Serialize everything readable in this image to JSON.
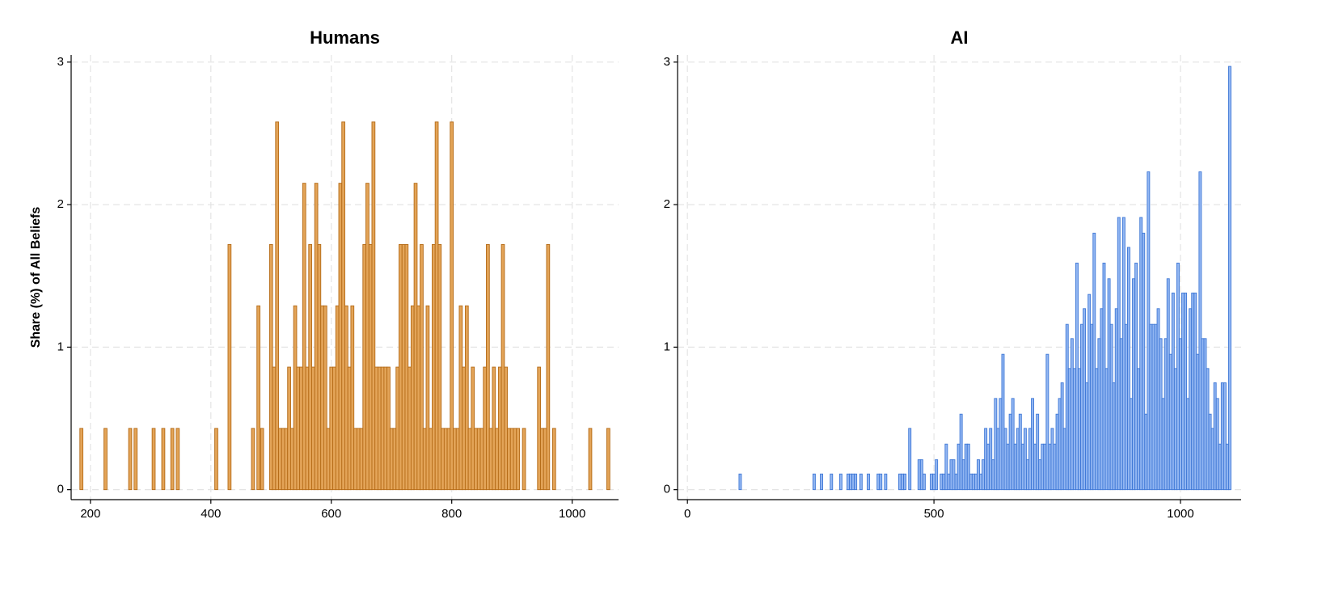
{
  "chart_data": [
    {
      "type": "bar",
      "title": "Humans",
      "y_label": "Share (%) of All Beliefs",
      "x": [
        185,
        225,
        266,
        275,
        305,
        321,
        336,
        345,
        409,
        431,
        470,
        479,
        485,
        500,
        505,
        510,
        515,
        520,
        525,
        530,
        535,
        540,
        545,
        550,
        555,
        560,
        565,
        570,
        575,
        580,
        585,
        590,
        595,
        600,
        605,
        610,
        615,
        620,
        625,
        630,
        635,
        640,
        645,
        650,
        655,
        660,
        665,
        670,
        675,
        680,
        685,
        690,
        695,
        700,
        705,
        710,
        715,
        720,
        725,
        730,
        735,
        740,
        745,
        750,
        755,
        760,
        765,
        770,
        775,
        780,
        785,
        790,
        795,
        800,
        805,
        810,
        815,
        820,
        825,
        830,
        835,
        840,
        845,
        850,
        855,
        860,
        865,
        870,
        875,
        880,
        885,
        890,
        895,
        900,
        905,
        910,
        920,
        945,
        950,
        955,
        960,
        970,
        1030,
        1060
      ],
      "values": [
        0.43,
        0.43,
        0.43,
        0.43,
        0.43,
        0.43,
        0.43,
        0.43,
        0.43,
        1.72,
        0.43,
        1.29,
        0.43,
        1.72,
        0.86,
        2.58,
        0.43,
        0.43,
        0.43,
        0.86,
        0.43,
        1.29,
        0.86,
        0.86,
        2.15,
        0.86,
        1.72,
        0.86,
        2.15,
        1.72,
        1.29,
        1.29,
        0.43,
        0.86,
        0.86,
        1.29,
        2.15,
        2.58,
        1.29,
        0.86,
        1.29,
        0.43,
        0.43,
        0.43,
        1.72,
        2.15,
        1.72,
        2.58,
        0.86,
        0.86,
        0.86,
        0.86,
        0.86,
        0.43,
        0.43,
        0.86,
        1.72,
        1.72,
        1.72,
        0.86,
        1.29,
        2.15,
        1.29,
        1.72,
        0.43,
        1.29,
        0.43,
        1.72,
        2.58,
        1.72,
        0.43,
        0.43,
        0.43,
        2.58,
        0.43,
        0.43,
        1.29,
        0.86,
        1.29,
        0.43,
        0.86,
        0.43,
        0.43,
        0.43,
        0.86,
        1.72,
        0.43,
        0.86,
        0.43,
        0.86,
        1.72,
        0.86,
        0.43,
        0.43,
        0.43,
        0.43,
        0.43,
        0.86,
        0.43,
        0.43,
        1.72,
        0.43,
        0.43,
        0.43
      ],
      "color": "#e3a458",
      "edge_color": "#b46a16",
      "xlim": [
        168,
        1077
      ],
      "ylim": [
        -0.07,
        3.05
      ],
      "xticks": [
        200,
        400,
        600,
        800,
        1000
      ],
      "yticks": [
        0,
        1,
        2,
        3
      ],
      "grid": true
    },
    {
      "type": "bar",
      "title": "AI",
      "x": [
        107,
        257,
        272,
        292,
        311,
        326,
        331,
        336,
        341,
        352,
        367,
        387,
        392,
        402,
        431,
        436,
        441,
        451,
        470,
        475,
        480,
        495,
        500,
        505,
        515,
        520,
        525,
        530,
        535,
        540,
        545,
        550,
        555,
        560,
        565,
        570,
        575,
        580,
        585,
        590,
        595,
        600,
        605,
        610,
        615,
        620,
        625,
        630,
        635,
        640,
        645,
        650,
        655,
        660,
        665,
        670,
        675,
        680,
        685,
        690,
        695,
        700,
        705,
        710,
        715,
        720,
        725,
        730,
        735,
        740,
        745,
        750,
        755,
        760,
        765,
        770,
        775,
        780,
        785,
        790,
        795,
        800,
        805,
        810,
        815,
        820,
        825,
        830,
        835,
        840,
        845,
        850,
        855,
        860,
        865,
        870,
        875,
        880,
        885,
        890,
        895,
        900,
        905,
        910,
        915,
        920,
        925,
        930,
        935,
        940,
        945,
        950,
        955,
        960,
        965,
        970,
        975,
        980,
        985,
        990,
        995,
        1000,
        1005,
        1010,
        1015,
        1020,
        1025,
        1030,
        1035,
        1040,
        1045,
        1050,
        1055,
        1060,
        1065,
        1070,
        1075,
        1080,
        1085,
        1090,
        1095,
        1100
      ],
      "values": [
        0.11,
        0.11,
        0.11,
        0.11,
        0.11,
        0.11,
        0.11,
        0.11,
        0.11,
        0.11,
        0.11,
        0.11,
        0.11,
        0.11,
        0.11,
        0.11,
        0.11,
        0.43,
        0.21,
        0.21,
        0.11,
        0.11,
        0.11,
        0.21,
        0.11,
        0.11,
        0.32,
        0.11,
        0.21,
        0.21,
        0.11,
        0.32,
        0.53,
        0.21,
        0.32,
        0.32,
        0.11,
        0.11,
        0.11,
        0.21,
        0.11,
        0.21,
        0.43,
        0.32,
        0.43,
        0.21,
        0.64,
        0.43,
        0.64,
        0.95,
        0.43,
        0.32,
        0.53,
        0.64,
        0.32,
        0.43,
        0.53,
        0.32,
        0.43,
        0.21,
        0.43,
        0.64,
        0.32,
        0.53,
        0.21,
        0.32,
        0.32,
        0.95,
        0.32,
        0.43,
        0.32,
        0.53,
        0.64,
        0.75,
        0.43,
        1.16,
        0.85,
        1.06,
        0.85,
        1.59,
        0.85,
        1.16,
        1.27,
        0.75,
        1.37,
        1.16,
        1.8,
        0.85,
        1.06,
        1.27,
        1.59,
        0.85,
        1.48,
        1.16,
        0.75,
        1.27,
        1.91,
        1.06,
        1.91,
        1.16,
        1.7,
        0.64,
        1.48,
        1.59,
        0.85,
        1.91,
        1.8,
        0.53,
        2.23,
        1.16,
        1.16,
        1.16,
        1.27,
        1.06,
        0.64,
        1.06,
        1.48,
        0.95,
        1.38,
        0.85,
        1.59,
        1.06,
        1.38,
        1.38,
        0.64,
        1.27,
        1.38,
        1.38,
        0.95,
        2.23,
        1.06,
        1.06,
        0.85,
        0.53,
        0.43,
        0.75,
        0.64,
        0.32,
        0.75,
        0.75,
        0.32,
        2.97
      ],
      "color": "#92b6f2",
      "edge_color": "#3f78d6",
      "xlim": [
        -20,
        1123
      ],
      "ylim": [
        -0.07,
        3.05
      ],
      "xticks": [
        0,
        500,
        1000
      ],
      "yticks": [
        0,
        1,
        2,
        3
      ],
      "grid": true
    }
  ]
}
